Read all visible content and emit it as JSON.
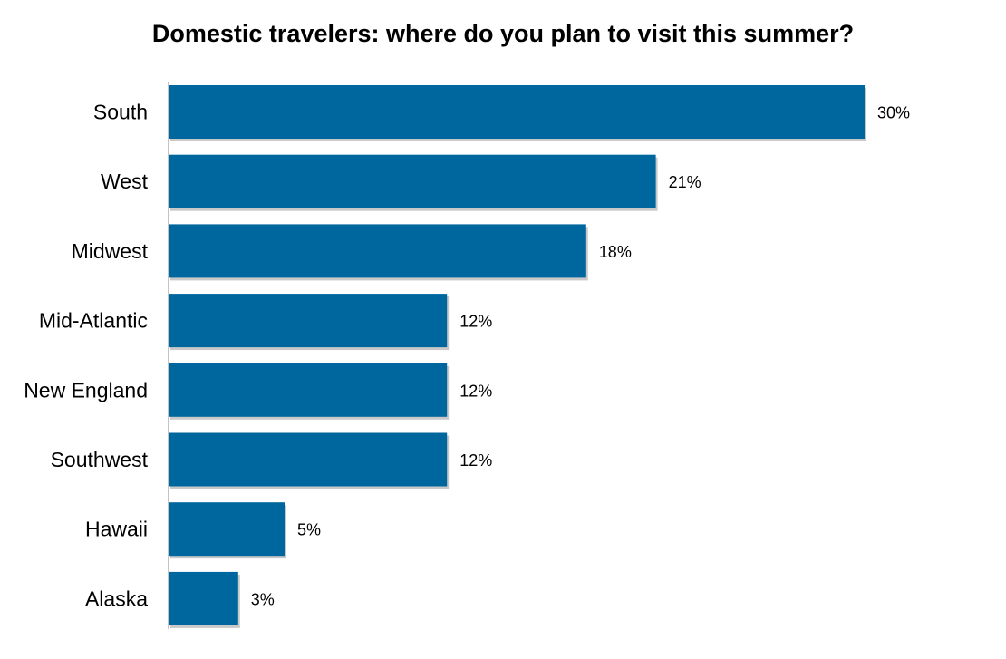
{
  "chart_data": {
    "type": "bar",
    "orientation": "horizontal",
    "title": "Domestic travelers: where do you plan to visit this summer?",
    "categories": [
      "South",
      "West",
      "Midwest",
      "Mid-Atlantic",
      "New England",
      "Southwest",
      "Hawaii",
      "Alaska"
    ],
    "values": [
      30,
      21,
      18,
      12,
      12,
      12,
      5,
      3
    ],
    "value_labels": [
      "30%",
      "21%",
      "18%",
      "12%",
      "12%",
      "12%",
      "5%",
      "3%"
    ],
    "xlim": [
      0,
      30
    ],
    "grid": false,
    "legend": "none",
    "bar_color": "#00669e"
  }
}
